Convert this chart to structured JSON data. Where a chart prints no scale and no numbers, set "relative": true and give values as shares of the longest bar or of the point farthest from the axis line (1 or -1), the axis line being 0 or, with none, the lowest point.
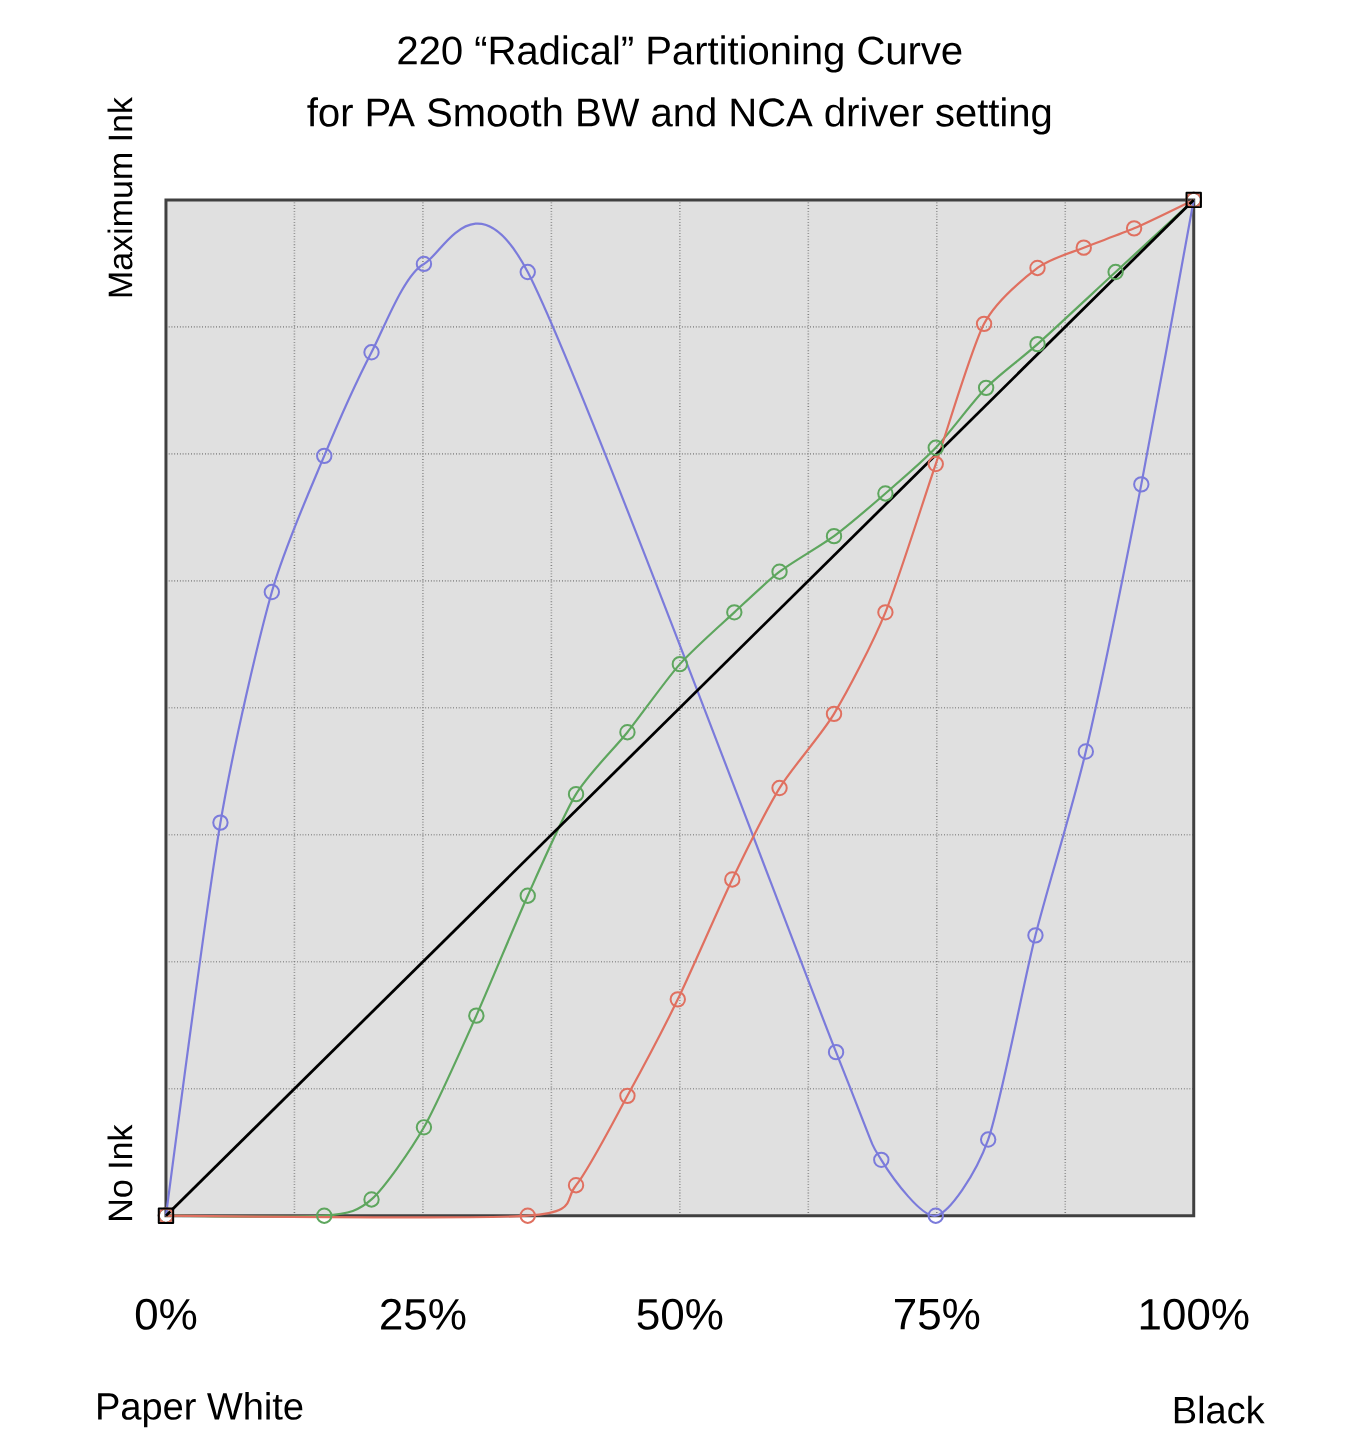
{
  "chart_data": {
    "type": "line",
    "title": "220 “Radical” Partitioning Curve",
    "subtitle": "for PA Smooth BW and NCA driver setting",
    "relative": true,
    "xlim": [
      0,
      100
    ],
    "xticks": [
      {
        "value": 0,
        "label": "0%"
      },
      {
        "value": 12.5,
        "label": null
      },
      {
        "value": 25,
        "label": "25%"
      },
      {
        "value": 37.5,
        "label": null
      },
      {
        "value": 50,
        "label": "50%"
      },
      {
        "value": 62.5,
        "label": null
      },
      {
        "value": 75,
        "label": "75%"
      },
      {
        "value": 87.5,
        "label": null
      },
      {
        "value": 100,
        "label": "100%"
      }
    ],
    "grid": true,
    "annotations": [
      "No Ink",
      "Maximum Ink",
      "Paper White",
      "Black"
    ],
    "series": [
      {
        "color": "#7b7bdb",
        "marker": "circle",
        "x": [
          0,
          5.3,
          10.3,
          15.4,
          20,
          25.1,
          35.2,
          65.2,
          69.6,
          74.9,
          80,
          84.6,
          89.5,
          94.9,
          100
        ],
        "values": [
          0,
          0.387,
          0.614,
          0.748,
          0.85,
          0.937,
          0.929,
          0.161,
          0.055,
          0,
          0.075,
          0.276,
          0.457,
          0.72,
          1
        ]
      },
      {
        "color": "#5ea65e",
        "marker": "circle",
        "x": [
          0,
          15.4,
          20,
          25.1,
          30.2,
          35.2,
          39.9,
          44.9,
          50,
          55.3,
          59.7,
          65,
          70,
          74.9,
          79.8,
          84.8,
          92.4,
          100
        ],
        "values": [
          0,
          0,
          0.016,
          0.087,
          0.197,
          0.315,
          0.415,
          0.476,
          0.543,
          0.594,
          0.634,
          0.669,
          0.711,
          0.756,
          0.815,
          0.858,
          0.929,
          1
        ]
      },
      {
        "color": "#e07060",
        "marker": "circle",
        "x": [
          0,
          35.2,
          39.9,
          44.9,
          49.8,
          55.1,
          59.7,
          65,
          70,
          74.9,
          79.6,
          84.8,
          89.3,
          94.2,
          100
        ],
        "values": [
          0,
          0,
          0.03,
          0.118,
          0.213,
          0.331,
          0.421,
          0.494,
          0.594,
          0.74,
          0.878,
          0.933,
          0.953,
          0.972,
          1
        ]
      },
      {
        "color": "#000000",
        "marker": "square",
        "x": [
          0,
          100
        ],
        "values": [
          0,
          1
        ]
      }
    ]
  }
}
